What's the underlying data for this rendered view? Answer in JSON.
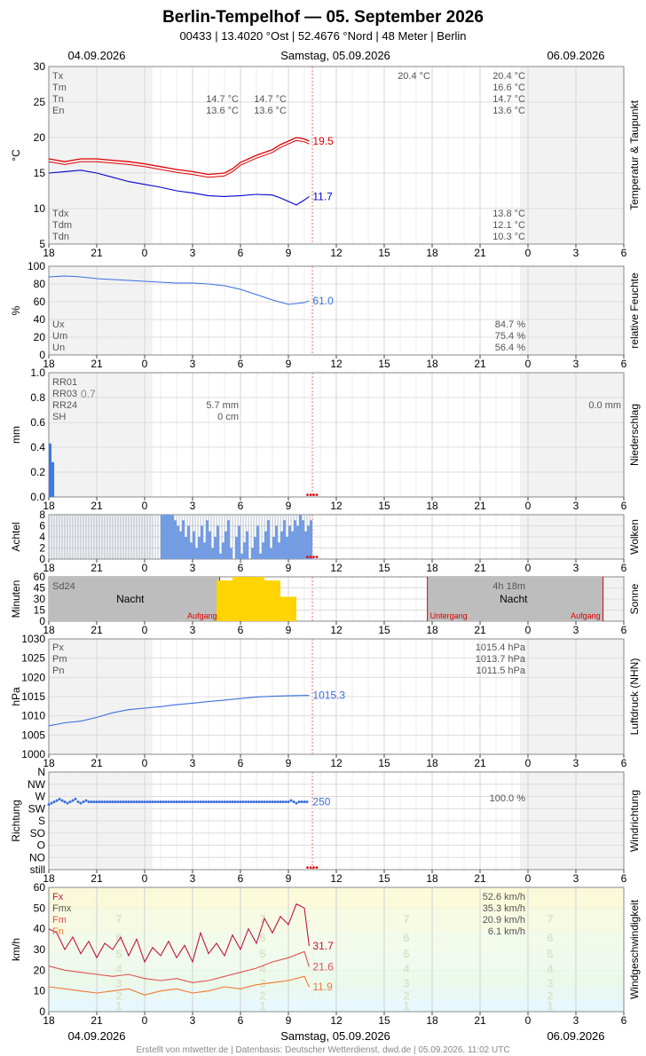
{
  "header": {
    "title": "Berlin-Tempelhof  —  05. September 2026",
    "subtitle": "00433  |  13.4020 °Ost  |  52.4676 °Nord  |  48 Meter  |  Berlin",
    "date_left": "04.09.2026",
    "date_center": "Samstag, 05.09.2026",
    "date_right": "06.09.2026",
    "footer": "Erstellt von mtwetter.de | Datenbasis: Deutscher Wetterdienst, dwd.de | 05.09.2026, 11:02 UTC"
  },
  "time_ticks": [
    "18",
    "21",
    "0",
    "3",
    "6",
    "9",
    "12",
    "15",
    "18",
    "21",
    "0",
    "3",
    "6"
  ],
  "colors": {
    "red": "#e00000",
    "blue": "#0000cc",
    "lightblue": "#3a6ee0",
    "bar_blue": "#3a78e8",
    "sun": "#ffd400",
    "night": "#bdbdbd",
    "grid": "#dddddd",
    "redgrid": "#f4b0b0"
  },
  "chart_data": [
    {
      "type": "line",
      "id": "temperature",
      "side_label": "Temperatur & Taupunkt",
      "ylabel": "°C",
      "ylim": [
        5,
        30
      ],
      "yticks": [
        "30",
        "25",
        "20",
        "15",
        "10",
        "5"
      ],
      "stats_left_top": [
        "Tx",
        "Tm",
        "Tn",
        "En"
      ],
      "stats_left_bottom": [
        "Tdx",
        "Tdm",
        "Tdn"
      ],
      "stats_day_prev": {
        "tn": "14.7 °C",
        "en": "13.6 °C",
        "tn2": "14.7 °C",
        "en2": "13.6 °C"
      },
      "stats_day_tx": "20.4 °C",
      "stats_right_top": [
        "20.4 °C",
        "16.6 °C",
        "14.7 °C",
        "13.6 °C"
      ],
      "stats_right_bottom": [
        "13.8 °C",
        "12.1 °C",
        "10.3 °C"
      ],
      "series": [
        {
          "label": "19.5",
          "x": [
            18,
            19,
            20,
            21,
            22,
            23,
            24,
            25,
            26,
            27,
            28,
            29,
            29.5,
            30,
            31,
            32,
            32.5,
            33,
            33.5,
            34,
            34.3
          ],
          "values": [
            17.0,
            16.6,
            17.0,
            17.0,
            16.8,
            16.6,
            16.3,
            15.9,
            15.5,
            15.2,
            14.8,
            15.0,
            15.6,
            16.5,
            17.5,
            18.3,
            19.0,
            19.5,
            20.0,
            19.8,
            19.5
          ]
        },
        {
          "label": "11.7",
          "x": [
            18,
            19,
            20,
            21,
            22,
            23,
            24,
            25,
            26,
            27,
            28,
            29,
            30,
            31,
            32,
            32.5,
            33,
            33.5,
            34,
            34.3
          ],
          "values": [
            15.0,
            15.2,
            15.4,
            15.0,
            14.4,
            13.8,
            13.4,
            13.0,
            12.5,
            12.2,
            11.8,
            11.7,
            11.8,
            12.0,
            11.9,
            11.5,
            11.0,
            10.5,
            11.2,
            11.7
          ]
        }
      ]
    },
    {
      "type": "line",
      "id": "humidity",
      "side_label": "relative Feuchte",
      "ylabel": "%",
      "ylim": [
        0,
        100
      ],
      "yticks": [
        "100",
        "80",
        "60",
        "40",
        "20",
        "0"
      ],
      "stats_left": [
        "Ux",
        "Um",
        "Un"
      ],
      "stats_right": [
        "84.7 %",
        "75.4 %",
        "56.4 %"
      ],
      "series": [
        {
          "label": "61.0",
          "x": [
            18,
            19,
            20,
            21,
            22,
            23,
            24,
            25,
            26,
            27,
            28,
            29,
            30,
            31,
            32,
            33,
            34,
            34.3
          ],
          "values": [
            88,
            89,
            88,
            86,
            85,
            84,
            83,
            82,
            81,
            81,
            80,
            78,
            74,
            68,
            62,
            57,
            59,
            61
          ]
        }
      ]
    },
    {
      "type": "bar",
      "id": "precip",
      "side_label": "Niederschlag",
      "ylabel": "mm",
      "ylim": [
        0,
        1.0
      ],
      "yticks": [
        "1.0",
        "0.8",
        "0.6",
        "0.4",
        "0.2",
        "0.0"
      ],
      "stats_left": [
        "RR01",
        "RR03",
        "RR24",
        "SH"
      ],
      "rr03_value": "0.7",
      "rr24_value": "5.7 mm",
      "sh_value": "0 cm",
      "rr24_right": "0.0 mm",
      "x": [
        18.0,
        18.17
      ],
      "values": [
        0.43,
        0.28
      ]
    },
    {
      "type": "bar",
      "id": "clouds",
      "side_label": "Wolken",
      "ylabel": "Achtel",
      "ylim": [
        0,
        8
      ],
      "yticks": [
        "8",
        "6",
        "4",
        "2",
        "0"
      ],
      "x_start": 18.0,
      "x_step": 0.1667,
      "values": [
        8,
        8,
        8,
        8,
        8,
        8,
        8,
        8,
        8,
        8,
        8,
        8,
        8,
        8,
        8,
        8,
        8,
        8,
        8,
        8,
        8,
        8,
        8,
        8,
        8,
        8,
        8,
        8,
        8,
        8,
        8,
        8,
        8,
        8,
        8,
        8,
        8,
        8,
        8,
        8,
        8,
        8,
        8,
        8,
        8,
        8,
        8,
        8,
        8,
        8,
        8,
        8,
        8,
        8,
        8,
        8,
        8,
        8,
        8,
        8,
        8,
        8,
        8,
        8,
        8,
        8,
        8,
        8,
        8,
        8,
        8,
        8,
        8,
        8,
        8,
        8,
        8,
        8,
        8,
        8,
        8,
        8,
        8,
        8,
        8,
        8,
        8,
        8,
        8,
        8,
        8,
        8,
        8,
        8,
        8,
        8,
        8,
        8,
        8,
        8,
        8,
        8,
        8,
        8,
        8,
        8,
        8,
        8,
        8,
        8,
        8,
        8,
        8,
        8,
        8,
        8,
        8,
        8,
        8,
        8,
        8,
        8,
        8,
        8,
        8,
        8,
        8,
        8,
        8,
        8,
        8,
        8,
        8,
        8,
        8,
        8,
        8,
        8,
        8,
        8,
        8,
        8,
        8,
        8,
        8,
        8,
        8,
        8
      ],
      "filled": [
        0,
        0,
        0,
        0,
        0,
        0,
        0,
        0,
        0,
        0,
        0,
        0,
        0,
        0,
        0,
        0,
        0,
        0,
        0,
        0,
        0,
        0,
        0,
        0,
        0,
        0,
        0,
        0,
        0,
        0,
        0,
        0,
        0,
        0,
        0,
        0,
        0,
        0,
        0,
        0,
        0,
        0,
        8,
        8,
        8,
        8,
        8,
        7,
        6,
        5,
        7,
        4,
        6,
        3,
        5,
        2,
        4,
        6,
        3,
        7,
        5,
        2,
        4,
        6,
        1,
        3,
        5,
        7,
        2,
        0,
        4,
        6,
        1,
        3,
        5,
        0,
        2,
        4,
        6,
        1,
        3,
        5,
        7,
        2,
        4,
        6,
        3,
        5,
        7,
        4,
        6,
        5,
        7,
        6,
        8,
        7,
        5,
        6,
        7,
        8,
        7,
        6,
        7,
        5,
        6,
        7,
        8,
        7,
        6,
        7,
        8,
        6,
        7,
        8,
        7,
        6,
        5,
        4,
        0,
        0
      ]
    },
    {
      "type": "bar",
      "id": "sunshine",
      "side_label": "Sonne",
      "ylabel": "Minuten",
      "ylim": [
        0,
        60
      ],
      "yticks": [
        "60",
        "45",
        "30",
        "15",
        "0"
      ],
      "sd_label": "Sd24",
      "sd_value": "4h 18m",
      "night_label": "Nacht",
      "sunrise_label": "Aufgang",
      "sunset_label": "Untergang",
      "sunrise": 28.7,
      "sunset": 41.7,
      "sunrise_next": 52.7,
      "x": [
        29,
        30,
        31,
        32,
        33
      ],
      "values": [
        55,
        60,
        60,
        55,
        33
      ]
    },
    {
      "type": "line",
      "id": "pressure",
      "side_label": "Luftdruck (NHN)",
      "ylabel": "hPa",
      "ylim": [
        1000,
        1030
      ],
      "yticks": [
        "1030",
        "1025",
        "1020",
        "1015",
        "1010",
        "1005",
        "1000"
      ],
      "stats_left": [
        "Px",
        "Pm",
        "Pn"
      ],
      "stats_right": [
        "1015.4 hPa",
        "1013.7 hPa",
        "1011.5 hPa"
      ],
      "series": [
        {
          "label": "1015.3",
          "x": [
            18,
            19,
            20,
            21,
            22,
            23,
            24,
            25,
            26,
            27,
            28,
            29,
            30,
            31,
            32,
            33,
            34,
            34.3
          ],
          "values": [
            1007.4,
            1008.2,
            1008.6,
            1009.6,
            1010.8,
            1011.6,
            1012.0,
            1012.4,
            1012.9,
            1013.3,
            1013.7,
            1014.1,
            1014.5,
            1014.9,
            1015.1,
            1015.2,
            1015.3,
            1015.3
          ]
        }
      ]
    },
    {
      "type": "scatter",
      "id": "winddir",
      "side_label": "Windrichtung",
      "ylabel": "Richtung",
      "ylim": [
        0,
        8
      ],
      "yticks": [
        "N",
        "NW",
        "W",
        "SW",
        "S",
        "SO",
        "O",
        "NO",
        "still"
      ],
      "stat_right": "100.0 %",
      "label": "250",
      "x_start": 18.0,
      "x_step": 0.1667,
      "values_deg": [
        240,
        245,
        250,
        255,
        260,
        255,
        250,
        245,
        250,
        255,
        260,
        250,
        245,
        250,
        255,
        250,
        250,
        250,
        250,
        250,
        250,
        250,
        250,
        250,
        250,
        250,
        250,
        250,
        250,
        250,
        250,
        250,
        250,
        250,
        250,
        250,
        250,
        250,
        250,
        250,
        250,
        250,
        250,
        250,
        250,
        250,
        250,
        250,
        250,
        250,
        250,
        250,
        250,
        250,
        250,
        250,
        250,
        250,
        250,
        250,
        250,
        250,
        250,
        250,
        250,
        250,
        250,
        250,
        250,
        250,
        250,
        250,
        250,
        250,
        250,
        250,
        250,
        250,
        250,
        250,
        250,
        250,
        250,
        250,
        250,
        250,
        250,
        250,
        250,
        250,
        250,
        255,
        250,
        245,
        250,
        250,
        250,
        250,
        250,
        250
      ]
    },
    {
      "type": "line",
      "id": "windspeed",
      "side_label": "Windgeschwindigkeit",
      "ylabel": "km/h",
      "ylim": [
        0,
        60
      ],
      "yticks": [
        "60",
        "50",
        "40",
        "30",
        "20",
        "10",
        "0"
      ],
      "stats_left": [
        "Fx",
        "Fmx",
        "Fm",
        "Fn"
      ],
      "stats_right": [
        "52.6 km/h",
        "35.3 km/h",
        "20.9 km/h",
        "6.1 km/h"
      ],
      "bft_labels": [
        "7",
        "6",
        "5",
        "4",
        "3",
        "2",
        "1"
      ],
      "series": [
        {
          "label": "31.7",
          "x": [
            18,
            18.5,
            19,
            19.5,
            20,
            20.5,
            21,
            21.5,
            22,
            22.5,
            23,
            23.5,
            24,
            24.5,
            25,
            25.5,
            26,
            26.5,
            27,
            27.5,
            28,
            28.5,
            29,
            29.5,
            30,
            30.5,
            31,
            31.5,
            32,
            32.5,
            33,
            33.5,
            34,
            34.3
          ],
          "values": [
            40,
            38,
            30,
            36,
            28,
            34,
            26,
            33,
            30,
            36,
            27,
            35,
            24,
            31,
            27,
            34,
            26,
            32,
            24,
            38,
            28,
            33,
            27,
            37,
            30,
            40,
            33,
            45,
            38,
            46,
            42,
            52,
            50,
            31.7
          ]
        },
        {
          "label": "21.6",
          "x": [
            18,
            19,
            20,
            21,
            22,
            23,
            24,
            25,
            26,
            27,
            28,
            29,
            30,
            31,
            32,
            33,
            34,
            34.3
          ],
          "values": [
            22,
            20,
            19,
            18,
            17,
            18,
            16,
            15,
            16,
            14,
            15,
            17,
            19,
            21,
            24,
            26,
            29,
            21.6
          ]
        },
        {
          "label": "11.9",
          "x": [
            18,
            19,
            20,
            21,
            22,
            23,
            24,
            25,
            26,
            27,
            28,
            29,
            30,
            31,
            32,
            33,
            34,
            34.3
          ],
          "values": [
            12,
            11,
            10,
            9,
            10,
            11,
            8,
            10,
            11,
            9,
            10,
            12,
            11,
            13,
            14,
            15,
            17,
            11.9
          ]
        }
      ]
    }
  ]
}
